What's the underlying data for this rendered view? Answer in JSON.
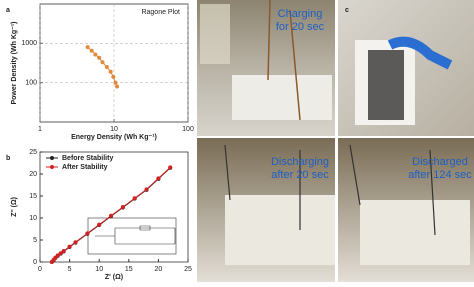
{
  "chart_data": [
    {
      "type": "line",
      "label": "a",
      "title": "Ragone Plot",
      "x_label": "Energy Density (Wh Kg⁻¹)",
      "y_label": "Power Density (Wh Kg⁻¹)",
      "xlog": true,
      "ylog": true,
      "xlim": [
        1,
        100
      ],
      "ylim": [
        10,
        10000
      ],
      "xticks": [
        1,
        10,
        100
      ],
      "yticks": [
        100,
        1000
      ],
      "grid": true,
      "x": [
        4.4,
        5,
        5.6,
        6.3,
        7,
        8,
        9,
        9.8,
        10.5,
        11
      ],
      "series": [
        {
          "color": "#e08a3c",
          "values": [
            800,
            650,
            520,
            430,
            330,
            250,
            190,
            140,
            100,
            80
          ]
        }
      ]
    },
    {
      "type": "line",
      "label": "b",
      "x_label": "Z' (Ω)",
      "y_label": "Z'' (Ω)",
      "xlim": [
        0,
        25
      ],
      "ylim": [
        0,
        25
      ],
      "xticks": [
        0,
        5,
        10,
        15,
        20,
        25
      ],
      "yticks": [
        0,
        5,
        10,
        15,
        20,
        25
      ],
      "grid": false,
      "x": [
        2,
        2.3,
        2.6,
        3,
        3.5,
        4,
        5,
        6,
        8,
        10,
        12,
        14,
        16,
        18,
        20,
        22
      ],
      "series": [
        {
          "name": "Before Stability",
          "color": "#222222",
          "values": [
            0,
            0.4,
            0.9,
            1.4,
            1.9,
            2.4,
            3.4,
            4.4,
            6.4,
            8.4,
            10.4,
            12.4,
            14.4,
            16.4,
            18.9,
            21.4
          ]
        },
        {
          "name": "After Stability",
          "color": "#d42020",
          "values": [
            0,
            0.5,
            1,
            1.5,
            2,
            2.5,
            3.5,
            4.5,
            6.5,
            8.5,
            10.5,
            12.5,
            14.5,
            16.5,
            19,
            21.5
          ]
        }
      ]
    }
  ],
  "photos": [
    {
      "lines": [
        "Charging",
        "for 20 sec"
      ]
    },
    {
      "label": "c"
    },
    {
      "lines": [
        "Discharging",
        "after 20 sec"
      ]
    },
    {
      "lines": [
        "Discharged",
        "after 124 sec"
      ]
    }
  ]
}
